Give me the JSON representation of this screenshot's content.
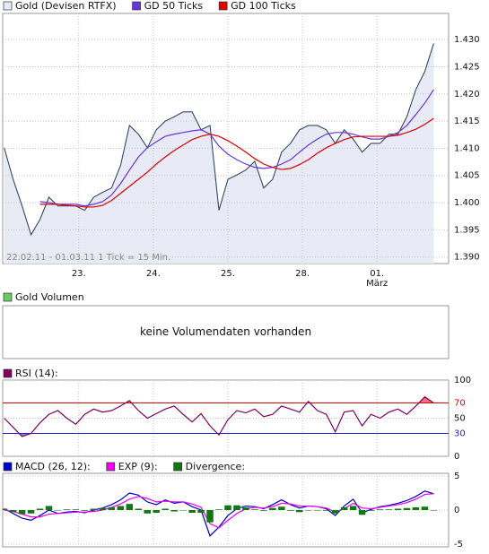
{
  "chart_data": [
    {
      "type": "line",
      "annotation": "22.02.11 - 01.03.11   1 Tick = 15 Min.",
      "x": [
        0,
        0.12,
        0.24,
        0.36,
        0.48,
        0.6,
        0.72,
        0.84,
        0.96,
        1.08,
        1.2,
        1.32,
        1.44,
        1.56,
        1.68,
        1.8,
        1.92,
        2.04,
        2.16,
        2.28,
        2.4,
        2.52,
        2.64,
        2.76,
        2.88,
        3,
        3.12,
        3.24,
        3.36,
        3.48,
        3.6,
        3.72,
        3.84,
        3.96,
        4.08,
        4.2,
        4.32,
        4.44,
        4.56,
        4.68,
        4.8,
        4.92,
        5.04,
        5.16,
        5.28,
        5.4,
        5.52,
        5.64,
        5.76
      ],
      "xlim": [
        -0.02,
        5.96
      ],
      "xticks": [
        {
          "value": 1,
          "label": "23."
        },
        {
          "value": 2,
          "label": "24."
        },
        {
          "value": 3,
          "label": "25."
        },
        {
          "value": 4,
          "label": "28."
        },
        {
          "value": 5,
          "label": "01."
        }
      ],
      "x_sublabel": "März",
      "ylim": [
        1.3888,
        1.4348
      ],
      "yticks": [
        {
          "value": 1.39,
          "label": "1.390"
        },
        1.395,
        {
          "value": 1.4,
          "label": "1.400"
        },
        1.405,
        {
          "value": 1.41,
          "label": "1.410"
        },
        1.415,
        {
          "value": 1.42,
          "label": "1.420"
        },
        1.425,
        {
          "value": 1.43,
          "label": "1.430"
        }
      ],
      "grid": true,
      "series": [
        {
          "name": "Gold (Devisen RTFX)",
          "color": "#34495e",
          "fill": "#e8eaf6",
          "values": [
            1.4101,
            1.4043,
            1.3994,
            1.3941,
            1.3969,
            1.401,
            1.3994,
            1.3994,
            1.3994,
            1.3986,
            1.401,
            1.4019,
            1.4027,
            1.4068,
            1.4142,
            1.4126,
            1.4101,
            1.4134,
            1.415,
            1.4158,
            1.4167,
            1.4167,
            1.4134,
            1.4142,
            1.3986,
            1.4043,
            1.4051,
            1.406,
            1.4076,
            1.4027,
            1.4043,
            1.4093,
            1.4109,
            1.4134,
            1.4142,
            1.4142,
            1.4134,
            1.4109,
            1.4134,
            1.4117,
            1.4093,
            1.4109,
            1.4109,
            1.4126,
            1.4126,
            1.4158,
            1.4208,
            1.4241,
            1.4293
          ]
        },
        {
          "name": "GD 50 Ticks",
          "color": "#6633dd",
          "values": [
            null,
            null,
            null,
            null,
            1.4002,
            1.4,
            1.3997,
            1.3997,
            1.3997,
            1.3994,
            1.3997,
            1.4002,
            1.4014,
            1.4035,
            1.406,
            1.4084,
            1.4101,
            1.4112,
            1.4122,
            1.4126,
            1.4129,
            1.4132,
            1.4134,
            1.4126,
            1.4104,
            1.4089,
            1.4079,
            1.4071,
            1.4065,
            1.4063,
            1.4065,
            1.4071,
            1.4079,
            1.4093,
            1.4106,
            1.4117,
            1.4126,
            1.4129,
            1.4129,
            1.4126,
            1.4121,
            1.4117,
            1.4117,
            1.4122,
            1.4129,
            1.4142,
            1.4162,
            1.4183,
            1.4208
          ]
        },
        {
          "name": "GD 100 Ticks",
          "color": "#dd0000",
          "values": [
            null,
            null,
            null,
            null,
            1.3997,
            1.3997,
            1.3997,
            1.3995,
            1.3994,
            1.3992,
            1.3992,
            1.3995,
            1.4004,
            1.4017,
            1.403,
            1.4043,
            1.4056,
            1.4071,
            1.4084,
            1.4096,
            1.4106,
            1.4116,
            1.4122,
            1.4126,
            1.4122,
            1.4114,
            1.4104,
            1.4093,
            1.4081,
            1.4071,
            1.4065,
            1.4061,
            1.4063,
            1.407,
            1.4079,
            1.4091,
            1.4101,
            1.4109,
            1.4116,
            1.4121,
            1.4122,
            1.4122,
            1.4122,
            1.4122,
            1.4124,
            1.4129,
            1.4135,
            1.4144,
            1.4155
          ]
        }
      ]
    },
    {
      "type": "bar",
      "message": "keine Volumendaten vorhanden",
      "series": [
        {
          "name": "Gold Volumen",
          "color": "#66cc66"
        }
      ]
    },
    {
      "type": "line",
      "x": [
        0,
        0.12,
        0.24,
        0.36,
        0.48,
        0.6,
        0.72,
        0.84,
        0.96,
        1.08,
        1.2,
        1.32,
        1.44,
        1.56,
        1.68,
        1.8,
        1.92,
        2.04,
        2.16,
        2.28,
        2.4,
        2.52,
        2.64,
        2.76,
        2.88,
        3,
        3.12,
        3.24,
        3.36,
        3.48,
        3.6,
        3.72,
        3.84,
        3.96,
        4.08,
        4.2,
        4.32,
        4.44,
        4.56,
        4.68,
        4.8,
        4.92,
        5.04,
        5.16,
        5.28,
        5.4,
        5.52,
        5.64,
        5.76
      ],
      "xlim": [
        -0.02,
        5.96
      ],
      "xticks": [
        1,
        2,
        3,
        4,
        5
      ],
      "ylim": [
        0,
        100
      ],
      "yticks": [
        0,
        30,
        50,
        70,
        100
      ],
      "levels": [
        {
          "value": 70,
          "color": "#e00000"
        },
        {
          "value": 30,
          "color": "#2222cc"
        }
      ],
      "grid": true,
      "series": [
        {
          "name": "RSI (14):",
          "color": "#800060",
          "values": [
            50,
            38,
            26,
            30,
            44,
            55,
            60,
            50,
            42,
            55,
            62,
            58,
            60,
            66,
            73,
            60,
            50,
            56,
            62,
            66,
            55,
            45,
            56,
            40,
            28,
            48,
            60,
            57,
            62,
            52,
            55,
            66,
            62,
            58,
            72,
            60,
            55,
            32,
            58,
            60,
            40,
            55,
            50,
            58,
            62,
            55,
            66,
            78,
            70
          ]
        }
      ]
    },
    {
      "type": "line",
      "x": [
        0,
        0.12,
        0.24,
        0.36,
        0.48,
        0.6,
        0.72,
        0.84,
        0.96,
        1.08,
        1.2,
        1.32,
        1.44,
        1.56,
        1.68,
        1.8,
        1.92,
        2.04,
        2.16,
        2.28,
        2.4,
        2.52,
        2.64,
        2.76,
        2.88,
        3,
        3.12,
        3.24,
        3.36,
        3.48,
        3.6,
        3.72,
        3.84,
        3.96,
        4.08,
        4.2,
        4.32,
        4.44,
        4.56,
        4.68,
        4.8,
        4.92,
        5.04,
        5.16,
        5.28,
        5.4,
        5.52,
        5.64,
        5.76
      ],
      "xlim": [
        -0.02,
        5.96
      ],
      "xticks": [
        1,
        2,
        3,
        4,
        5
      ],
      "ylim": [
        -5.4,
        5.4
      ],
      "yticks": [
        -5,
        0,
        5
      ],
      "grid": true,
      "series": [
        {
          "name": "MACD (26, 12):",
          "color": "#0000cc",
          "values": [
            0.2,
            -0.5,
            -1.2,
            -1.5,
            -0.8,
            0,
            -0.5,
            -0.3,
            -0.2,
            -0.4,
            0,
            0.3,
            0.8,
            1.5,
            2.5,
            2.2,
            1.2,
            0.8,
            1.5,
            1.0,
            1.2,
            0.5,
            0,
            -3.8,
            -2.5,
            -0.8,
            0.2,
            0.6,
            0.5,
            0.2,
            0.8,
            1.5,
            0.8,
            0.3,
            0.6,
            0.5,
            0.2,
            -0.8,
            0.6,
            1.6,
            -0.4,
            0.1,
            0.5,
            0.7,
            1.0,
            1.4,
            2.0,
            2.8,
            2.4
          ]
        },
        {
          "name": "EXP (9):",
          "color": "#ee00ee",
          "values": [
            0,
            -0.2,
            -0.6,
            -1.0,
            -1.0,
            -0.6,
            -0.5,
            -0.4,
            -0.3,
            -0.3,
            -0.2,
            0,
            0.4,
            0.9,
            1.6,
            2.0,
            1.7,
            1.2,
            1.3,
            1.2,
            1.2,
            0.9,
            0.4,
            -2.0,
            -2.6,
            -1.5,
            -0.5,
            0.2,
            0.4,
            0.3,
            0.5,
            1.0,
            0.9,
            0.6,
            0.6,
            0.5,
            0.3,
            -0.3,
            0.2,
            1.0,
            0.3,
            0.2,
            0.4,
            0.6,
            0.8,
            1.1,
            1.6,
            2.3,
            2.4
          ]
        },
        {
          "name": "Divergence:",
          "color": "#117711",
          "style": "bar",
          "values": [
            0.2,
            -0.3,
            -0.6,
            -0.5,
            0.2,
            0.6,
            0,
            0.1,
            0.1,
            -0.1,
            0.2,
            0.3,
            0.4,
            0.6,
            0.9,
            0.2,
            -0.5,
            -0.4,
            0.2,
            -0.2,
            0,
            -0.4,
            -0.4,
            -1.8,
            0.1,
            0.7,
            0.7,
            0.4,
            0.1,
            -0.1,
            0.3,
            0.5,
            -0.1,
            -0.3,
            0,
            0,
            -0.1,
            -0.5,
            0.4,
            0.6,
            -0.7,
            -0.1,
            0.1,
            0.1,
            0.2,
            0.3,
            0.4,
            0.5,
            0
          ]
        }
      ]
    }
  ]
}
